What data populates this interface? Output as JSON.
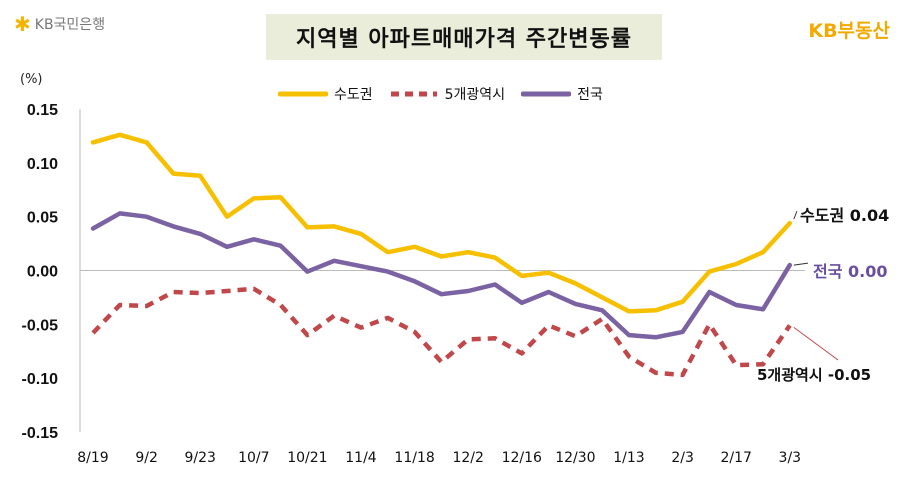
{
  "brand": {
    "left_logo": "KB국민은행",
    "right_logo": "KB부동산"
  },
  "colors": {
    "capital": "#f6c000",
    "metro5": "#c0474a",
    "national": "#7a62a3",
    "title_bg": "#e9edd9"
  },
  "chart_data": {
    "type": "line",
    "title": "지역별 아파트매매가격 주간변동률",
    "unit": "(%)",
    "ylim": [
      -0.15,
      0.15
    ],
    "yticks": [
      "0.15",
      "0.10",
      "0.05",
      "0.00",
      "-0.05",
      "-0.10",
      "-0.15"
    ],
    "x_tick_labels": [
      "8/19",
      "9/2",
      "9/23",
      "10/7",
      "10/21",
      "11/4",
      "11/18",
      "12/2",
      "12/16",
      "12/30",
      "1/13",
      "2/3",
      "2/17",
      "3/3"
    ],
    "legend": [
      "수도권",
      "5개광역시",
      "전국"
    ],
    "series": [
      {
        "name": "수도권",
        "style": "solid",
        "values": [
          0.119,
          0.126,
          0.119,
          0.09,
          0.088,
          0.05,
          0.067,
          0.068,
          0.04,
          0.041,
          0.034,
          0.017,
          0.022,
          0.013,
          0.017,
          0.012,
          -0.005,
          -0.002,
          -0.012,
          -0.025,
          -0.038,
          -0.037,
          -0.029,
          -0.001,
          0.006,
          0.017,
          0.044
        ]
      },
      {
        "name": "5개광역시",
        "style": "dashed",
        "values": [
          -0.058,
          -0.032,
          -0.033,
          -0.02,
          -0.021,
          -0.019,
          -0.017,
          -0.032,
          -0.06,
          -0.042,
          -0.053,
          -0.044,
          -0.057,
          -0.085,
          -0.064,
          -0.063,
          -0.077,
          -0.051,
          -0.061,
          -0.045,
          -0.08,
          -0.095,
          -0.097,
          -0.05,
          -0.088,
          -0.087,
          -0.051
        ]
      },
      {
        "name": "전국",
        "style": "solid",
        "values": [
          0.039,
          0.053,
          0.05,
          0.041,
          0.034,
          0.022,
          0.029,
          0.023,
          -0.001,
          0.009,
          0.004,
          -0.001,
          -0.01,
          -0.022,
          -0.019,
          -0.013,
          -0.03,
          -0.02,
          -0.031,
          -0.037,
          -0.06,
          -0.062,
          -0.057,
          -0.02,
          -0.032,
          -0.036,
          0.005
        ]
      }
    ],
    "annotations": [
      {
        "series": "수도권",
        "text": "수도권 0.04"
      },
      {
        "series": "전국",
        "text": "전국 0.00"
      },
      {
        "series": "5개광역시",
        "text": "5개광역시 -0.05"
      }
    ]
  }
}
